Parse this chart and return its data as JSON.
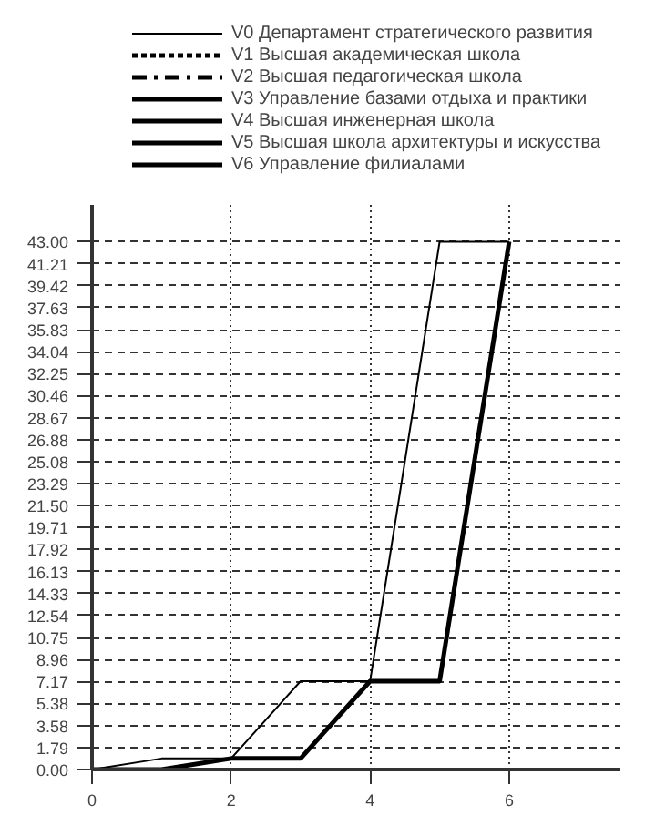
{
  "chart_data": {
    "type": "line",
    "x": [
      0,
      1,
      2,
      3,
      4,
      5,
      6
    ],
    "series": [
      {
        "name": "V0 Департамент стратегического развития",
        "color": "#000000",
        "line_style": "solid",
        "values": [
          0,
          0.9,
          0.9,
          7.2,
          7.2,
          43,
          43
        ]
      },
      {
        "name": "V1 Высшая академическая школа",
        "color": "#000000",
        "line_style": "dotted",
        "values": [
          null,
          null,
          null,
          null,
          null,
          null,
          null
        ]
      },
      {
        "name": "V2 Высшая педагогическая школа",
        "color": "#000000",
        "line_style": "dashed",
        "values": [
          null,
          null,
          null,
          null,
          null,
          null,
          null
        ]
      },
      {
        "name": "V3 Управление базами отдыха и практики",
        "color": "#000000",
        "line_style": "solid",
        "values": [
          null,
          null,
          null,
          null,
          null,
          null,
          null
        ]
      },
      {
        "name": "V4 Высшая инженерная школа",
        "color": "#000000",
        "line_style": "solid",
        "values": [
          null,
          null,
          null,
          null,
          null,
          null,
          null
        ]
      },
      {
        "name": "V5 Высшая школа архитектуры и искусства",
        "color": "#000000",
        "line_style": "solid",
        "values": [
          null,
          null,
          null,
          null,
          null,
          null,
          null
        ]
      },
      {
        "name": "V6 Управление филиалами",
        "color": "#000000",
        "line_style": "solid",
        "values": [
          0,
          0,
          0.9,
          0.9,
          7.2,
          7.2,
          43
        ]
      }
    ],
    "xlim": [
      0,
      7.6
    ],
    "ylim": [
      0,
      46
    ],
    "xticks": [
      0,
      2,
      4,
      6
    ],
    "yticks": [
      {
        "value": 0,
        "label": "0.00"
      },
      {
        "value": 1.79,
        "label": "1.79"
      },
      {
        "value": 3.58,
        "label": "3.58"
      },
      {
        "value": 5.38,
        "label": "5.38"
      },
      {
        "value": 7.17,
        "label": "7.17"
      },
      {
        "value": 8.96,
        "label": "8.96"
      },
      {
        "value": 10.75,
        "label": "10.75"
      },
      {
        "value": 12.54,
        "label": "12.54"
      },
      {
        "value": 14.33,
        "label": "14.33"
      },
      {
        "value": 16.13,
        "label": "16.13"
      },
      {
        "value": 17.92,
        "label": "17.92"
      },
      {
        "value": 19.71,
        "label": "19.71"
      },
      {
        "value": 21.5,
        "label": "21.50"
      },
      {
        "value": 23.29,
        "label": "23.29"
      },
      {
        "value": 25.08,
        "label": "25.08"
      },
      {
        "value": 26.88,
        "label": "26.88"
      },
      {
        "value": 28.67,
        "label": "28.67"
      },
      {
        "value": 30.46,
        "label": "30.46"
      },
      {
        "value": 32.25,
        "label": "32.25"
      },
      {
        "value": 34.04,
        "label": "34.04"
      },
      {
        "value": 35.83,
        "label": "35.83"
      },
      {
        "value": 37.63,
        "label": "37.63"
      },
      {
        "value": 39.42,
        "label": "39.42"
      },
      {
        "value": 41.21,
        "label": "41.21"
      },
      {
        "value": 43,
        "label": "43.00"
      }
    ],
    "grid": true,
    "legend": "top",
    "marker": "none"
  }
}
